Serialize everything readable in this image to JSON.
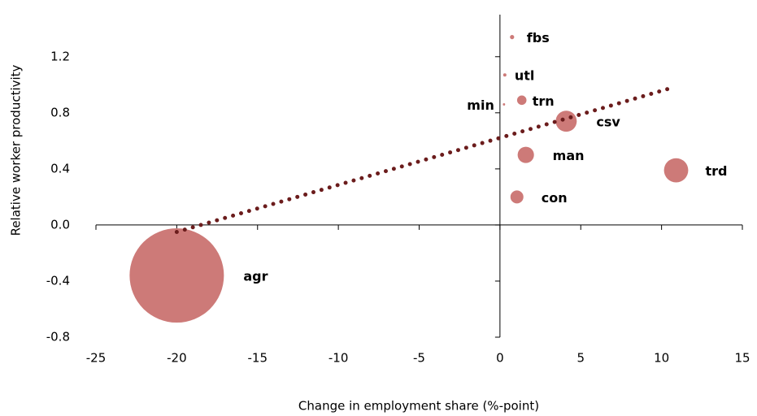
{
  "chart_data": {
    "type": "bubble",
    "x_label": "Change in employment share (%-point)",
    "y_label": "Relative worker productivity",
    "labels": [
      "agr",
      "trd",
      "csv",
      "man",
      "con",
      "trn",
      "fbs",
      "utl",
      "min"
    ],
    "x": [
      -20,
      10.9,
      4.1,
      1.6,
      1.05,
      1.35,
      0.75,
      0.3,
      0.25
    ],
    "values": [
      -0.36,
      0.39,
      0.74,
      0.5,
      0.2,
      0.89,
      1.34,
      1.07,
      0.86
    ],
    "sizes": [
      50,
      3.3,
      2.5,
      1.5,
      0.95,
      0.5,
      0.1,
      0.06,
      0.03
    ],
    "color": "#cd7a78",
    "trendline": {
      "color": "#6b1c1c",
      "x": [
        -20,
        10.7
      ],
      "y": [
        -0.05,
        0.98
      ]
    },
    "xlim": [
      -25,
      15
    ],
    "xticks": [
      -25,
      -20,
      -15,
      -10,
      -5,
      0,
      5,
      10,
      15
    ],
    "ylim": [
      -0.8,
      1.5
    ],
    "yticks": [
      -0.8,
      -0.4,
      {
        "value": 0,
        "label": "0.0"
      },
      0.4,
      0.8,
      1.2
    ]
  }
}
